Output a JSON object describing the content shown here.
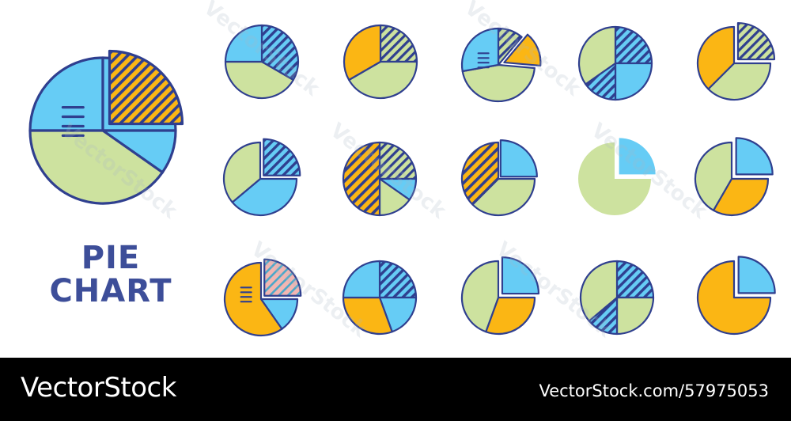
{
  "title": {
    "line1": "PIE",
    "line2": "CHART"
  },
  "footer": {
    "brand": "VectorStock",
    "image_id": "VectorStock.com/57975053"
  },
  "watermark": "VectorStock",
  "colors": {
    "outline": "#2f3f8f",
    "blue": "#66ccf5",
    "orange": "#fbb614",
    "green": "#cde29f",
    "pink": "#f2b6b2",
    "title": "#3d4e99",
    "footer_bg": "#000000",
    "background": "#ffffff"
  },
  "icons": [
    "large-pie-chart-icon",
    "pie-chart-icon-r1c1",
    "pie-chart-icon-r1c2",
    "pie-chart-icon-r1c3",
    "pie-chart-icon-r1c4",
    "pie-chart-icon-r1c5",
    "pie-chart-icon-r2c1",
    "pie-chart-icon-r2c2",
    "pie-chart-icon-r2c3",
    "pie-chart-icon-r2c4",
    "pie-chart-icon-r2c5",
    "pie-chart-icon-r3c1",
    "pie-chart-icon-r3c2",
    "pie-chart-icon-r3c3",
    "pie-chart-icon-r3c4",
    "pie-chart-icon-r3c5"
  ]
}
